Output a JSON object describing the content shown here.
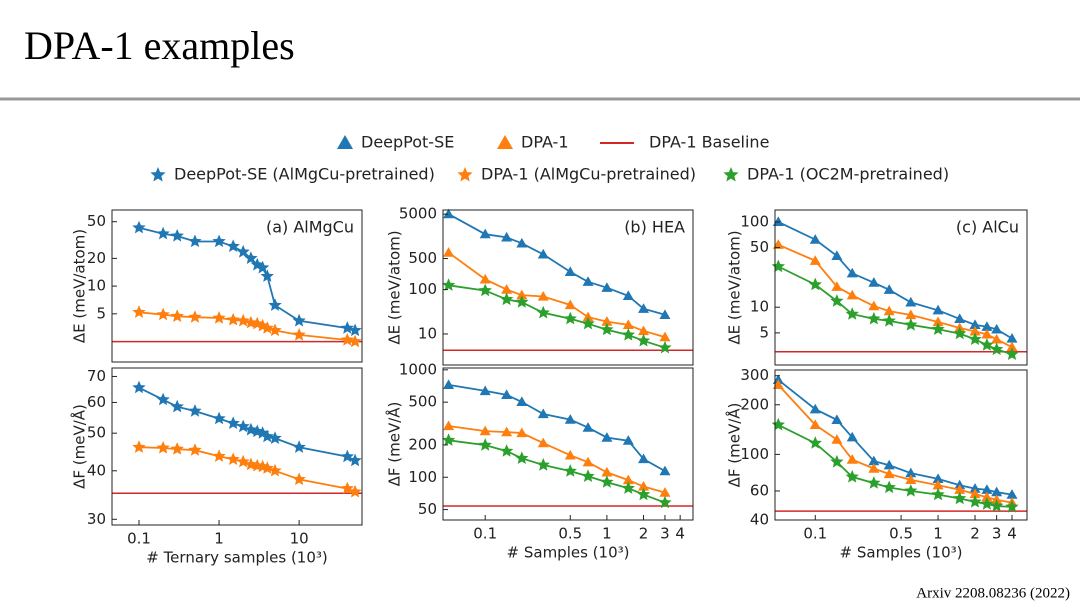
{
  "title": "DPA-1 examples",
  "footer": "Arxiv 2208.08236 (2022)",
  "chart_data": [
    {
      "type": "line",
      "title": "(a) AlMgCu",
      "ylabel": "ΔE (meV/atom)",
      "log_x": true,
      "log_y": true,
      "x": [
        0.1,
        0.2,
        0.3,
        0.5,
        1,
        1.5,
        2,
        2.5,
        3,
        3.5,
        4,
        5,
        10,
        40,
        50
      ],
      "xlim": [
        0.046,
        61
      ],
      "ylim": [
        1.5,
        67
      ],
      "yticks": [
        5,
        10,
        20,
        50
      ],
      "baseline": {
        "name": "DPA-1 Baseline",
        "color": "#d62728",
        "value": 2.5
      },
      "series": [
        {
          "name": "DeepPot-SE (AlMgCu-pretrained)",
          "color": "#1f77b4",
          "marker": "star",
          "values": [
            43,
            37,
            35,
            30.5,
            30.5,
            27,
            23.5,
            20,
            17,
            15.8,
            12.8,
            6.2,
            4.2,
            3.5,
            3.3
          ]
        },
        {
          "name": "DPA-1 (AlMgCu-pretrained)",
          "color": "#ff7f0e",
          "marker": "star",
          "values": [
            5.2,
            4.9,
            4.7,
            4.6,
            4.5,
            4.3,
            4.2,
            4.0,
            3.9,
            3.7,
            3.5,
            3.3,
            2.95,
            2.6,
            2.5
          ]
        }
      ]
    },
    {
      "type": "line",
      "ylabel": "ΔF (meV/Å)",
      "xlabel": "# Ternary samples (10³)",
      "log_x": true,
      "log_y": true,
      "x": [
        0.1,
        0.2,
        0.3,
        0.5,
        1,
        1.5,
        2,
        2.5,
        3,
        3.5,
        4,
        5,
        10,
        40,
        50
      ],
      "xlim": [
        0.046,
        61
      ],
      "xticks": [
        0.1,
        1,
        10
      ],
      "ylim": [
        29,
        73.6
      ],
      "yticks": [
        30,
        40,
        50,
        60,
        70
      ],
      "baseline": {
        "name": "DPA-1 Baseline",
        "color": "#d62728",
        "value": 35
      },
      "series": [
        {
          "name": "DeepPot-SE (AlMgCu-pretrained)",
          "color": "#1f77b4",
          "marker": "star",
          "values": [
            65.5,
            61,
            58.5,
            57,
            54.5,
            53,
            52,
            51,
            50.5,
            50,
            49,
            48.5,
            46,
            43.5,
            42.5
          ]
        },
        {
          "name": "DPA-1 (AlMgCu-pretrained)",
          "color": "#ff7f0e",
          "marker": "star",
          "values": [
            46,
            45.8,
            45.5,
            45.2,
            43.6,
            42.8,
            42.2,
            41.5,
            41.2,
            41,
            40.6,
            40,
            38,
            36,
            35.3
          ]
        }
      ]
    },
    {
      "type": "line",
      "title": "(b) HEA",
      "ylabel": "ΔE (meV/atom)",
      "log_x": true,
      "log_y": true,
      "x": [
        0.05,
        0.1,
        0.15,
        0.2,
        0.3,
        0.5,
        0.7,
        1,
        1.5,
        2,
        3
      ],
      "xlim": [
        0.045,
        5.1
      ],
      "ylim": [
        2,
        6200
      ],
      "yticks": [
        10,
        100,
        500,
        5000
      ],
      "baseline": {
        "name": "DPA-1 Baseline",
        "color": "#d62728",
        "value": 4.3
      },
      "series": [
        {
          "name": "DeepPot-SE",
          "color": "#1f77b4",
          "marker": "triangle",
          "values": [
            5000,
            1770,
            1500,
            1100,
            620,
            250,
            150,
            110,
            72,
            37,
            27
          ]
        },
        {
          "name": "DPA-1",
          "color": "#ff7f0e",
          "marker": "triangle",
          "values": [
            680,
            170,
            100,
            75,
            70,
            45,
            24,
            19,
            16,
            11.7,
            8.5
          ]
        },
        {
          "name": "DPA-1 (OC2M-pretrained)",
          "color": "#2ca02c",
          "marker": "star",
          "values": [
            125,
            95,
            60,
            52,
            30,
            22,
            17,
            12.5,
            9.5,
            7,
            4.9
          ]
        }
      ]
    },
    {
      "type": "line",
      "ylabel": "ΔF (meV/Å)",
      "xlabel": "# Samples (10³)",
      "log_x": true,
      "log_y": true,
      "x": [
        0.05,
        0.1,
        0.15,
        0.2,
        0.3,
        0.5,
        0.7,
        1,
        1.5,
        2,
        3
      ],
      "xlim": [
        0.045,
        5.1
      ],
      "xticks": [
        0.1,
        0.5,
        1,
        2,
        3,
        4
      ],
      "ylim": [
        40,
        1040
      ],
      "yticks": [
        50,
        100,
        200,
        500,
        1000
      ],
      "baseline": {
        "name": "DPA-1 Baseline",
        "color": "#d62728",
        "value": 54
      },
      "series": [
        {
          "name": "DeepPot-SE",
          "color": "#1f77b4",
          "marker": "triangle",
          "values": [
            724,
            636,
            584,
            503,
            388,
            344,
            290,
            234,
            219,
            148,
            114
          ]
        },
        {
          "name": "DPA-1",
          "color": "#ff7f0e",
          "marker": "triangle",
          "values": [
            300,
            269,
            263,
            258,
            208,
            160,
            138,
            111,
            94,
            82,
            72
          ]
        },
        {
          "name": "DPA-1 (OC2M-pretrained)",
          "color": "#2ca02c",
          "marker": "star",
          "values": [
            221,
            199,
            175,
            150,
            130,
            114,
            102,
            90,
            79,
            69,
            58
          ]
        }
      ]
    },
    {
      "type": "line",
      "title": "(c) AlCu",
      "ylabel": "ΔE (meV/atom)",
      "log_x": true,
      "log_y": true,
      "x": [
        0.05,
        0.1,
        0.15,
        0.2,
        0.3,
        0.4,
        0.6,
        1,
        1.5,
        2,
        2.5,
        3,
        4
      ],
      "xlim": [
        0.047,
        5.3
      ],
      "ylim": [
        2.1,
        138
      ],
      "yticks": [
        5,
        10,
        50,
        100
      ],
      "baseline": {
        "name": "DPA-1 Baseline",
        "color": "#d62728",
        "value": 3.0
      },
      "series": [
        {
          "name": "DeepPot-SE",
          "color": "#1f77b4",
          "marker": "triangle",
          "values": [
            100,
            62,
            40,
            25,
            19.4,
            16,
            11.4,
            9.2,
            7.3,
            6.2,
            5.9,
            5.5,
            4.3
          ]
        },
        {
          "name": "DPA-1",
          "color": "#ff7f0e",
          "marker": "triangle",
          "values": [
            54,
            35,
            17.4,
            13.8,
            10.3,
            9.0,
            8.1,
            6.7,
            5.7,
            5.2,
            4.8,
            4.2,
            3.4
          ]
        },
        {
          "name": "DPA-1 (OC2M-pretrained)",
          "color": "#2ca02c",
          "marker": "star",
          "values": [
            30,
            18.4,
            11.8,
            8.3,
            7.3,
            6.9,
            6.2,
            5.5,
            4.9,
            4.2,
            3.6,
            3.2,
            2.8
          ]
        }
      ]
    },
    {
      "type": "line",
      "ylabel": "ΔF (meV/Å)",
      "xlabel": "# Samples (10³)",
      "log_x": true,
      "log_y": true,
      "x": [
        0.05,
        0.1,
        0.15,
        0.2,
        0.3,
        0.4,
        0.6,
        1,
        1.5,
        2,
        2.5,
        3,
        4
      ],
      "xlim": [
        0.047,
        5.3
      ],
      "xticks": [
        0.1,
        0.5,
        1,
        2,
        3,
        4
      ],
      "ylim": [
        40,
        325
      ],
      "yticks": [
        40,
        60,
        100,
        200,
        300
      ],
      "baseline": {
        "name": "DPA-1 Baseline",
        "color": "#d62728",
        "value": 45.3
      },
      "series": [
        {
          "name": "DeepPot-SE",
          "color": "#1f77b4",
          "marker": "triangle",
          "values": [
            283,
            188,
            162,
            127,
            91,
            86,
            77,
            71,
            65,
            62,
            61,
            59,
            57
          ]
        },
        {
          "name": "DPA-1",
          "color": "#ff7f0e",
          "marker": "triangle",
          "values": [
            264,
            151,
            123,
            93,
            82,
            76,
            70,
            65,
            61,
            57.5,
            55,
            53,
            51
          ]
        },
        {
          "name": "DPA-1 (OC2M-pretrained)",
          "color": "#2ca02c",
          "marker": "star",
          "values": [
            151,
            117,
            90,
            73,
            67,
            63,
            60,
            57,
            54,
            51.5,
            50,
            48.6,
            48
          ]
        }
      ]
    }
  ]
}
